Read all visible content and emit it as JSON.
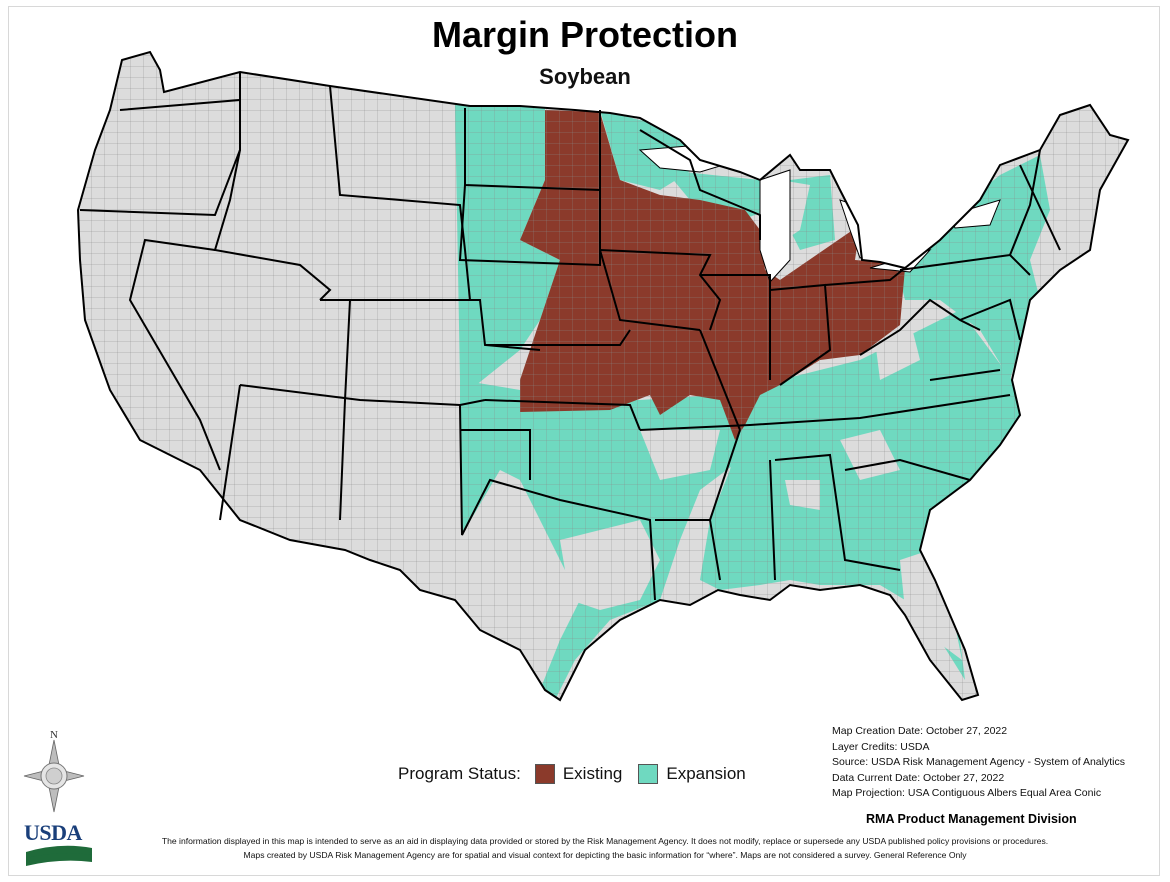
{
  "map": {
    "title": "Margin Protection",
    "subtitle": "Soybean",
    "colors": {
      "existing": "#8b3a2b",
      "expansion": "#6fd9c0",
      "other": "#dcdcdc",
      "county_border": "#7a7a7a",
      "state_border": "#000000"
    }
  },
  "legend": {
    "label": "Program Status:",
    "items": [
      {
        "label": "Existing",
        "color": "#8b3a2b"
      },
      {
        "label": "Expansion",
        "color": "#6fd9c0"
      }
    ]
  },
  "metadata": {
    "lines": [
      "Map Creation Date: October 27, 2022",
      "Layer Credits: USDA",
      "Source: USDA Risk Management Agency - System of Analytics",
      "Data Current Date: October 27, 2022",
      "Map Projection:  USA Contiguous Albers Equal Area Conic"
    ],
    "division": "RMA Product Management Division"
  },
  "disclaimer": {
    "line1": "The information displayed in this map is intended to serve as an aid in displaying data provided or stored by the Risk Management Agency. It does not modify, replace or supersede any USDA published policy provisions or procedures.",
    "line2": "Maps created by USDA Risk Management Agency are for spatial and visual context for depicting the basic information for “where”. Maps are not considered a survey. General Reference Only"
  },
  "compass": {
    "north_label": "N",
    "icon": "compass-rose-icon"
  },
  "logo": {
    "text": "USDA",
    "icon": "usda-logo-icon"
  }
}
